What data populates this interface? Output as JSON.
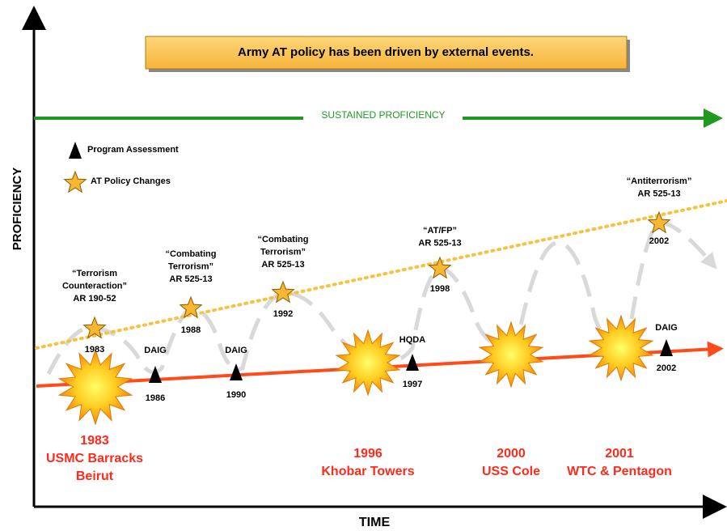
{
  "title": "Army AT policy has been driven by external events.",
  "y_axis_label": "PROFICIENCY",
  "x_axis_label": "TIME",
  "sustained_label": "SUSTAINED PROFICIENCY",
  "legend": [
    {
      "label": "Program Assessment"
    },
    {
      "label": "AT Policy Changes"
    }
  ],
  "policy_changes": [
    {
      "lines": [
        "“Terrorism",
        "Counteraction”",
        "AR 190-52"
      ],
      "year": "1983"
    },
    {
      "lines": [
        "“Combating",
        "Terrorism”",
        "AR 525-13"
      ],
      "year": "1988"
    },
    {
      "lines": [
        "“Combating",
        "Terrorism”",
        "AR 525-13"
      ],
      "year": "1992"
    },
    {
      "lines": [
        "“AT/FP”",
        "AR 525-13"
      ],
      "year": "1998"
    },
    {
      "lines": [
        "“Antiterrorism”",
        "AR 525-13"
      ],
      "year": "2002"
    }
  ],
  "assessments": [
    {
      "label": "DAIG",
      "year": "1986"
    },
    {
      "label": "DAIG",
      "year": "1990"
    },
    {
      "label": "HQDA",
      "year": "1997"
    },
    {
      "label": "DAIG",
      "year": "2002"
    }
  ],
  "events": [
    {
      "year": "1983",
      "lines": [
        "USMC Barracks",
        "Beirut"
      ]
    },
    {
      "year": "1996",
      "lines": [
        "Khobar Towers"
      ]
    },
    {
      "year": "2000",
      "lines": [
        "USS Cole"
      ]
    },
    {
      "year": "2001",
      "lines": [
        "WTC & Pentagon"
      ]
    }
  ]
}
